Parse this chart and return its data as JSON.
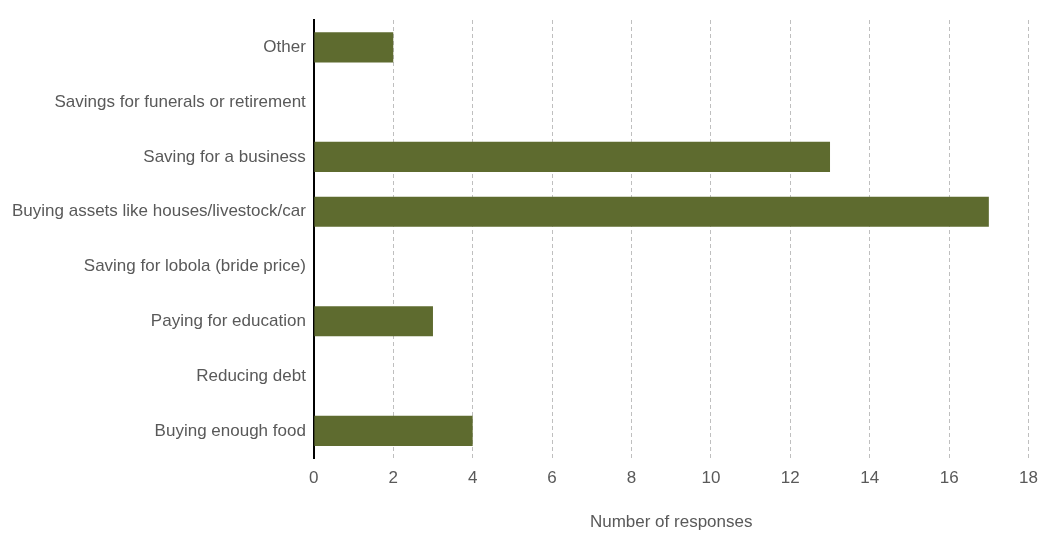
{
  "chart_data": {
    "type": "bar",
    "orientation": "horizontal",
    "categories": [
      "Other",
      "Savings for funerals or retirement",
      "Saving for a business",
      "Buying assets like houses/livestock/car",
      "Saving for lobola (bride price)",
      "Paying for education",
      "Reducing debt",
      "Buying enough food"
    ],
    "values": [
      2,
      0,
      13,
      17,
      0,
      3,
      0,
      4
    ],
    "color": "#5e6b2f",
    "xlabel": "Number of responses",
    "xlim": [
      0,
      18
    ],
    "xticks": [
      0,
      2,
      4,
      6,
      8,
      10,
      12,
      14,
      16,
      18
    ],
    "grid": "x",
    "legend": false
  }
}
